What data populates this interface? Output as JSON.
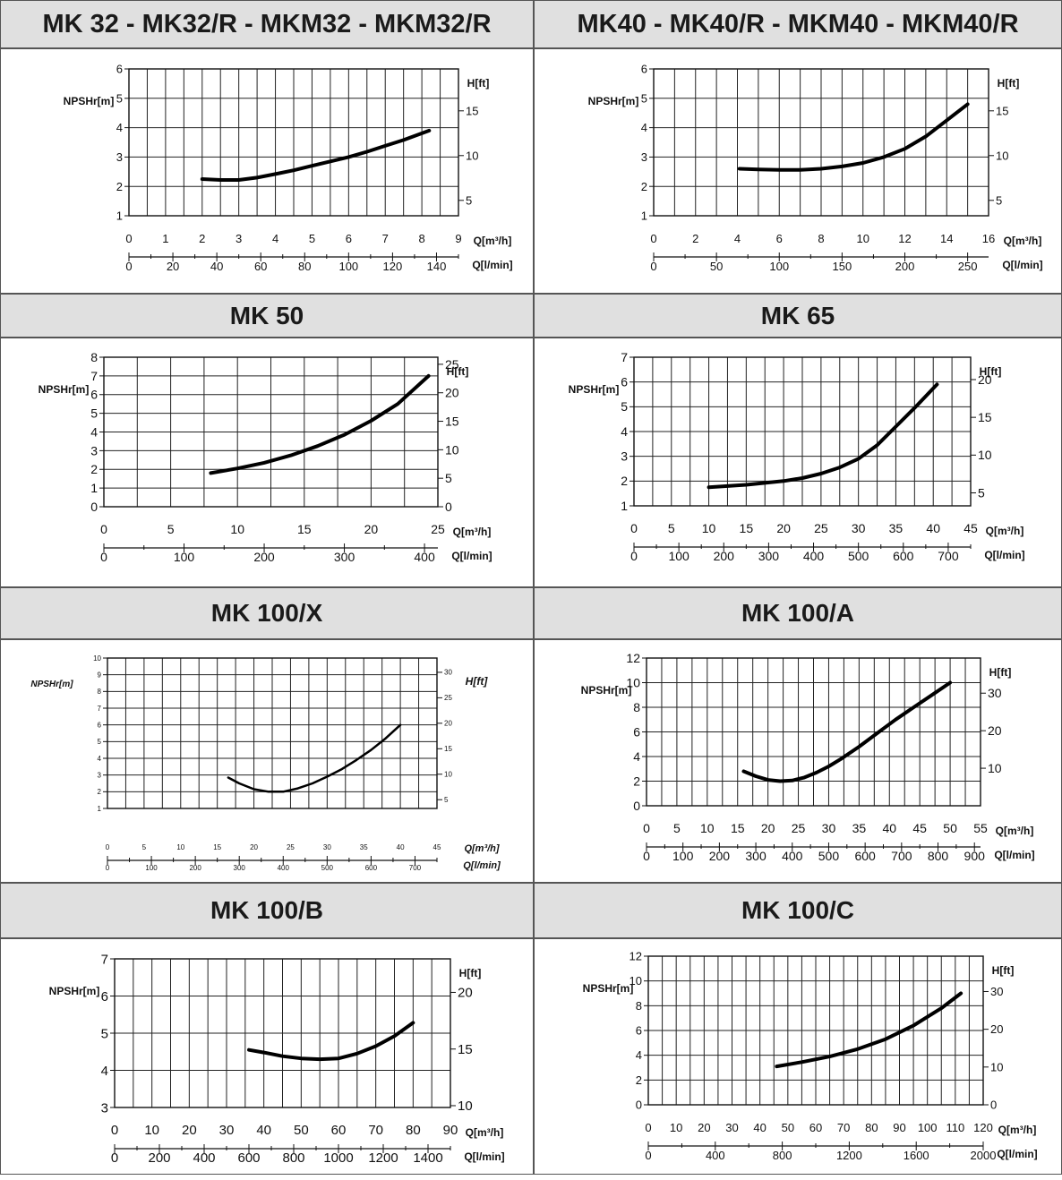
{
  "chart_data": [
    {
      "type": "line",
      "title": "MK 32 - MK32/R - MKM32 - MKM32/R",
      "ylabel": "NPSHr[m]",
      "y2label": "H[ft]",
      "xlabel": "Q[m³/h]",
      "x2label": "Q[l/min]",
      "xlim": [
        0,
        9
      ],
      "ylim": [
        1,
        6
      ],
      "xticks": [
        0,
        1,
        2,
        3,
        4,
        5,
        6,
        7,
        8,
        9
      ],
      "yticks": [
        1,
        2,
        3,
        4,
        5,
        6
      ],
      "y2ticks": [
        5,
        10,
        15
      ],
      "x2ticks": [
        0,
        20,
        40,
        60,
        80,
        100,
        120,
        140
      ],
      "grid": true,
      "series": [
        {
          "x": [
            2,
            2.5,
            3,
            3.5,
            4,
            4.5,
            5,
            5.5,
            6,
            6.5,
            7,
            7.5,
            8.2
          ],
          "y": [
            2.25,
            2.22,
            2.22,
            2.3,
            2.42,
            2.55,
            2.7,
            2.85,
            3.0,
            3.18,
            3.38,
            3.58,
            3.9
          ]
        }
      ]
    },
    {
      "type": "line",
      "title": "MK40 - MK40/R - MKM40 - MKM40/R",
      "ylabel": "NPSHr[m]",
      "y2label": "H[ft]",
      "xlabel": "Q[m³/h]",
      "x2label": "Q[l/min]",
      "xlim": [
        0,
        16
      ],
      "ylim": [
        1,
        6
      ],
      "xticks": [
        0,
        2,
        4,
        6,
        8,
        10,
        12,
        14,
        16
      ],
      "yticks": [
        1,
        2,
        3,
        4,
        5,
        6
      ],
      "y2ticks": [
        5,
        10,
        15
      ],
      "x2ticks": [
        0,
        50,
        100,
        150,
        200,
        250
      ],
      "grid": true,
      "series": [
        {
          "x": [
            4.1,
            5,
            6,
            7,
            8,
            9,
            10,
            11,
            12,
            13,
            14,
            15
          ],
          "y": [
            2.6,
            2.58,
            2.56,
            2.56,
            2.6,
            2.68,
            2.8,
            3.0,
            3.28,
            3.7,
            4.25,
            4.8
          ]
        }
      ]
    },
    {
      "type": "line",
      "title": "MK 50",
      "ylabel": "NPSHr[m]",
      "y2label": "H[ft]",
      "xlabel": "Q[m³/h]",
      "x2label": "Q[l/min]",
      "xlim": [
        0,
        25
      ],
      "ylim": [
        0,
        8
      ],
      "xticks": [
        0,
        5,
        10,
        15,
        20,
        25
      ],
      "yticks": [
        0,
        1,
        2,
        3,
        4,
        5,
        6,
        7,
        8
      ],
      "y2ticks": [
        0,
        5,
        10,
        15,
        20,
        25
      ],
      "x2ticks": [
        0,
        100,
        200,
        300,
        400
      ],
      "grid": true,
      "series": [
        {
          "x": [
            8,
            10,
            12,
            14,
            16,
            18,
            20,
            22,
            24.3
          ],
          "y": [
            1.8,
            2.05,
            2.35,
            2.75,
            3.25,
            3.85,
            4.6,
            5.5,
            7.0
          ]
        }
      ]
    },
    {
      "type": "line",
      "title": "MK 65",
      "ylabel": "NPSHr[m]",
      "y2label": "H[ft]",
      "xlabel": "Q[m³/h]",
      "x2label": "Q[l/min]",
      "xlim": [
        0,
        45
      ],
      "ylim": [
        1,
        7
      ],
      "xticks": [
        0,
        5,
        10,
        15,
        20,
        25,
        30,
        35,
        40,
        45
      ],
      "yticks": [
        1,
        2,
        3,
        4,
        5,
        6,
        7
      ],
      "y2ticks": [
        5,
        10,
        15,
        20
      ],
      "x2ticks": [
        0,
        100,
        200,
        300,
        400,
        500,
        600,
        700
      ],
      "grid": true,
      "series": [
        {
          "x": [
            10,
            15,
            20,
            22.5,
            25,
            27.5,
            30,
            32.5,
            35,
            37.5,
            40.5
          ],
          "y": [
            1.75,
            1.85,
            2.0,
            2.12,
            2.3,
            2.55,
            2.9,
            3.45,
            4.2,
            4.95,
            5.9
          ]
        }
      ]
    },
    {
      "type": "line",
      "title": "MK 100/X",
      "ylabel": "NPSHr[m]",
      "y2label": "H[ft]",
      "xlabel": "Q[m³/h]",
      "x2label": "Q[l/min]",
      "xlim": [
        0,
        45
      ],
      "ylim": [
        1,
        10
      ],
      "xticks": [
        0,
        5,
        10,
        15,
        20,
        25,
        30,
        35,
        40,
        45
      ],
      "yticks": [
        1,
        2,
        3,
        4,
        5,
        6,
        7,
        8,
        9,
        10
      ],
      "y2ticks": [
        5,
        10,
        15,
        20,
        25,
        30
      ],
      "x2ticks": [
        0,
        100,
        200,
        300,
        400,
        500,
        600,
        700
      ],
      "grid": true,
      "series": [
        {
          "x": [
            16.5,
            18,
            20,
            22,
            24,
            26,
            28,
            30,
            32,
            34,
            36,
            38,
            40
          ],
          "y": [
            2.85,
            2.5,
            2.15,
            2.0,
            2.0,
            2.2,
            2.5,
            2.9,
            3.35,
            3.9,
            4.5,
            5.2,
            6.0
          ]
        }
      ]
    },
    {
      "type": "line",
      "title": "MK 100/A",
      "ylabel": "NPSHr[m]",
      "y2label": "H[ft]",
      "xlabel": "Q[m³/h]",
      "x2label": "Q[l/min]",
      "xlim": [
        0,
        55
      ],
      "ylim": [
        0,
        12
      ],
      "xticks": [
        0,
        5,
        10,
        15,
        20,
        25,
        30,
        35,
        40,
        45,
        50,
        55
      ],
      "yticks": [
        0,
        2,
        4,
        6,
        8,
        10,
        12
      ],
      "y2ticks": [
        10,
        20,
        30
      ],
      "x2ticks": [
        0,
        100,
        200,
        300,
        400,
        500,
        600,
        700,
        800,
        900
      ],
      "grid": true,
      "series": [
        {
          "x": [
            16,
            18,
            20,
            22,
            24,
            26,
            28,
            30,
            32,
            35,
            38,
            41,
            44,
            47,
            50
          ],
          "y": [
            2.8,
            2.4,
            2.1,
            2.0,
            2.05,
            2.3,
            2.7,
            3.2,
            3.8,
            4.8,
            5.9,
            7.0,
            8.0,
            9.0,
            10.0
          ]
        }
      ]
    },
    {
      "type": "line",
      "title": "MK 100/B",
      "ylabel": "NPSHr[m]",
      "y2label": "H[ft]",
      "xlabel": "Q[m³/h]",
      "x2label": "Q[l/min]",
      "xlim": [
        0,
        90
      ],
      "ylim": [
        3,
        7
      ],
      "xticks": [
        0,
        10,
        20,
        30,
        40,
        50,
        60,
        70,
        80,
        90
      ],
      "yticks": [
        3,
        4,
        5,
        6,
        7
      ],
      "y2ticks": [
        10,
        15,
        20
      ],
      "x2ticks": [
        0,
        200,
        400,
        600,
        800,
        1000,
        1200,
        1400
      ],
      "grid": true,
      "series": [
        {
          "x": [
            36,
            40,
            45,
            50,
            55,
            60,
            65,
            70,
            75,
            80
          ],
          "y": [
            4.55,
            4.48,
            4.38,
            4.32,
            4.3,
            4.32,
            4.45,
            4.65,
            4.92,
            5.28
          ]
        }
      ]
    },
    {
      "type": "line",
      "title": "MK 100/C",
      "ylabel": "NPSHr[m]",
      "y2label": "H[ft]",
      "xlabel": "Q[m³/h]",
      "x2label": "Q[l/min]",
      "xlim": [
        0,
        120
      ],
      "ylim": [
        0,
        12
      ],
      "xticks": [
        0,
        10,
        20,
        30,
        40,
        50,
        60,
        70,
        80,
        90,
        100,
        110,
        120
      ],
      "yticks": [
        0,
        2,
        4,
        6,
        8,
        10,
        12
      ],
      "y2ticks": [
        0,
        10,
        20,
        30
      ],
      "x2ticks": [
        0,
        400,
        800,
        1200,
        1600,
        2000
      ],
      "grid": true,
      "series": [
        {
          "x": [
            46,
            55,
            65,
            75,
            85,
            95,
            105,
            112
          ],
          "y": [
            3.1,
            3.45,
            3.9,
            4.5,
            5.3,
            6.4,
            7.8,
            9.0
          ]
        }
      ]
    }
  ]
}
